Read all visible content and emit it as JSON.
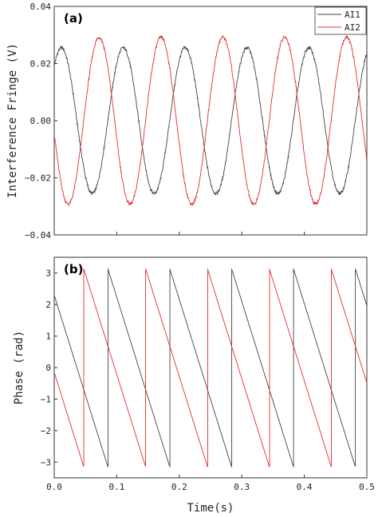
{
  "chart_data": [
    {
      "type": "line",
      "panel_label": "(a)",
      "ylabel": "Interference Fringe (V)",
      "xlabel": "",
      "xlim": [
        0.0,
        0.5
      ],
      "ylim": [
        -0.04,
        0.04
      ],
      "yticks": [
        "-0.04",
        "-0.02",
        "0.00",
        "0.02",
        "0.04"
      ],
      "grid": false,
      "legend": {
        "placement": "top-right",
        "entries": [
          "AI1",
          "AI2"
        ]
      },
      "series": [
        {
          "name": "AI1",
          "color": "#444444",
          "model": "sinusoid",
          "amplitude": 0.0255,
          "offset": 0.0,
          "phase_at_x0_rad": 2.3,
          "phase_slope_rad_per_s": -63.5,
          "noise": 0.0006
        },
        {
          "name": "AI2",
          "color": "#e03030",
          "model": "sinusoid",
          "amplitude": 0.0292,
          "offset": 0.0,
          "phase_at_x0_rad": -0.15,
          "phase_slope_rad_per_s": -63.5,
          "noise": 0.0006
        }
      ]
    },
    {
      "type": "line",
      "panel_label": "(b)",
      "ylabel": "Phase (rad)",
      "xlabel": "Time(s)",
      "xlim": [
        0.0,
        0.5
      ],
      "ylim": [
        -3.5,
        3.5
      ],
      "xticks": [
        "0.0",
        "0.1",
        "0.2",
        "0.3",
        "0.4",
        "0.5"
      ],
      "yticks": [
        "-3",
        "-2",
        "-1",
        "0",
        "1",
        "2",
        "3"
      ],
      "grid": false,
      "series": [
        {
          "name": "AI1",
          "color": "#444444",
          "model": "wrapped-phase",
          "phase_at_x0_rad": 2.3,
          "phase_slope_rad_per_s": -63.5
        },
        {
          "name": "AI2",
          "color": "#e03030",
          "model": "wrapped-phase",
          "phase_at_x0_rad": -0.15,
          "phase_slope_rad_per_s": -63.5
        }
      ]
    }
  ]
}
